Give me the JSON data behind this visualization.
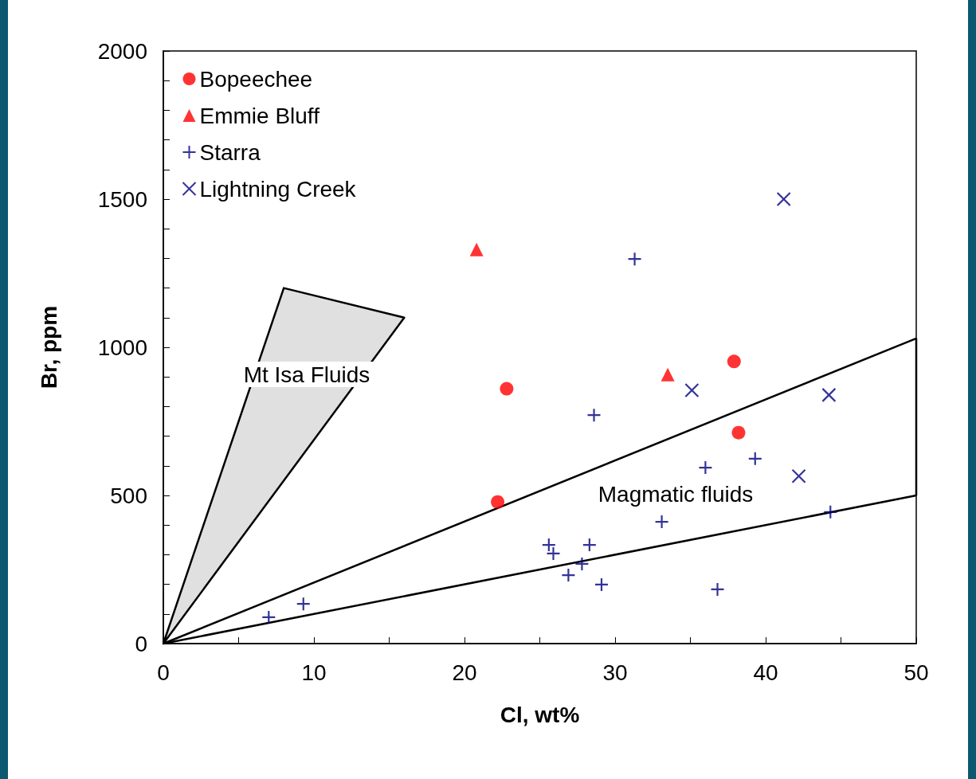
{
  "chart_data": {
    "type": "scatter",
    "xlabel": "Cl, wt%",
    "ylabel": "Br, ppm",
    "xlim": [
      0,
      50
    ],
    "xticks": [
      0,
      10,
      20,
      30,
      40,
      50
    ],
    "ylim": [
      0,
      2000
    ],
    "yticks": [
      0,
      500,
      1000,
      1500,
      2000
    ],
    "grid": false,
    "legend": "top left",
    "series": [
      {
        "name": "Bopeechee",
        "color": "#ff0000",
        "marker": "circle",
        "x": [
          22.8,
          37.9,
          38.2,
          22.2
        ],
        "values": [
          860,
          952,
          712,
          478
        ]
      },
      {
        "name": "Emmie Bluff",
        "color": "#ff0000",
        "marker": "triangle",
        "x": [
          20.8,
          33.5
        ],
        "values": [
          1330,
          908
        ]
      },
      {
        "name": "Starra",
        "color": "#000080",
        "marker": "plus",
        "x": [
          31.3,
          28.6,
          36.0,
          39.3,
          33.1,
          44.3,
          25.6,
          25.9,
          28.3,
          27.8,
          26.9,
          29.1,
          36.8,
          7.0,
          9.3
        ],
        "values": [
          1298,
          771,
          594,
          624,
          411,
          444,
          333,
          304,
          333,
          269,
          231,
          199,
          183,
          89,
          134
        ]
      },
      {
        "name": "Lightning Creek",
        "color": "#000080",
        "marker": "cross",
        "x": [
          41.2,
          35.1,
          44.2,
          42.2
        ],
        "values": [
          1500,
          855,
          839,
          565
        ]
      },
      {
        "type": "area",
        "color": "#e0e0e0",
        "x": [
          0,
          8,
          16,
          0
        ],
        "values": [
          0,
          1200,
          1100,
          0
        ]
      },
      {
        "type": "line",
        "color": "#000000",
        "x": [
          0,
          50
        ],
        "values": [
          0,
          1030
        ]
      },
      {
        "type": "line",
        "color": "#000000",
        "x": [
          0,
          50
        ],
        "values": [
          0,
          500
        ]
      },
      {
        "type": "line",
        "color": "#000000",
        "x": [
          50,
          50
        ],
        "values": [
          500,
          1030
        ]
      }
    ],
    "annotations": [
      "Mt Isa Fluids",
      "Magmatic fluids"
    ]
  }
}
